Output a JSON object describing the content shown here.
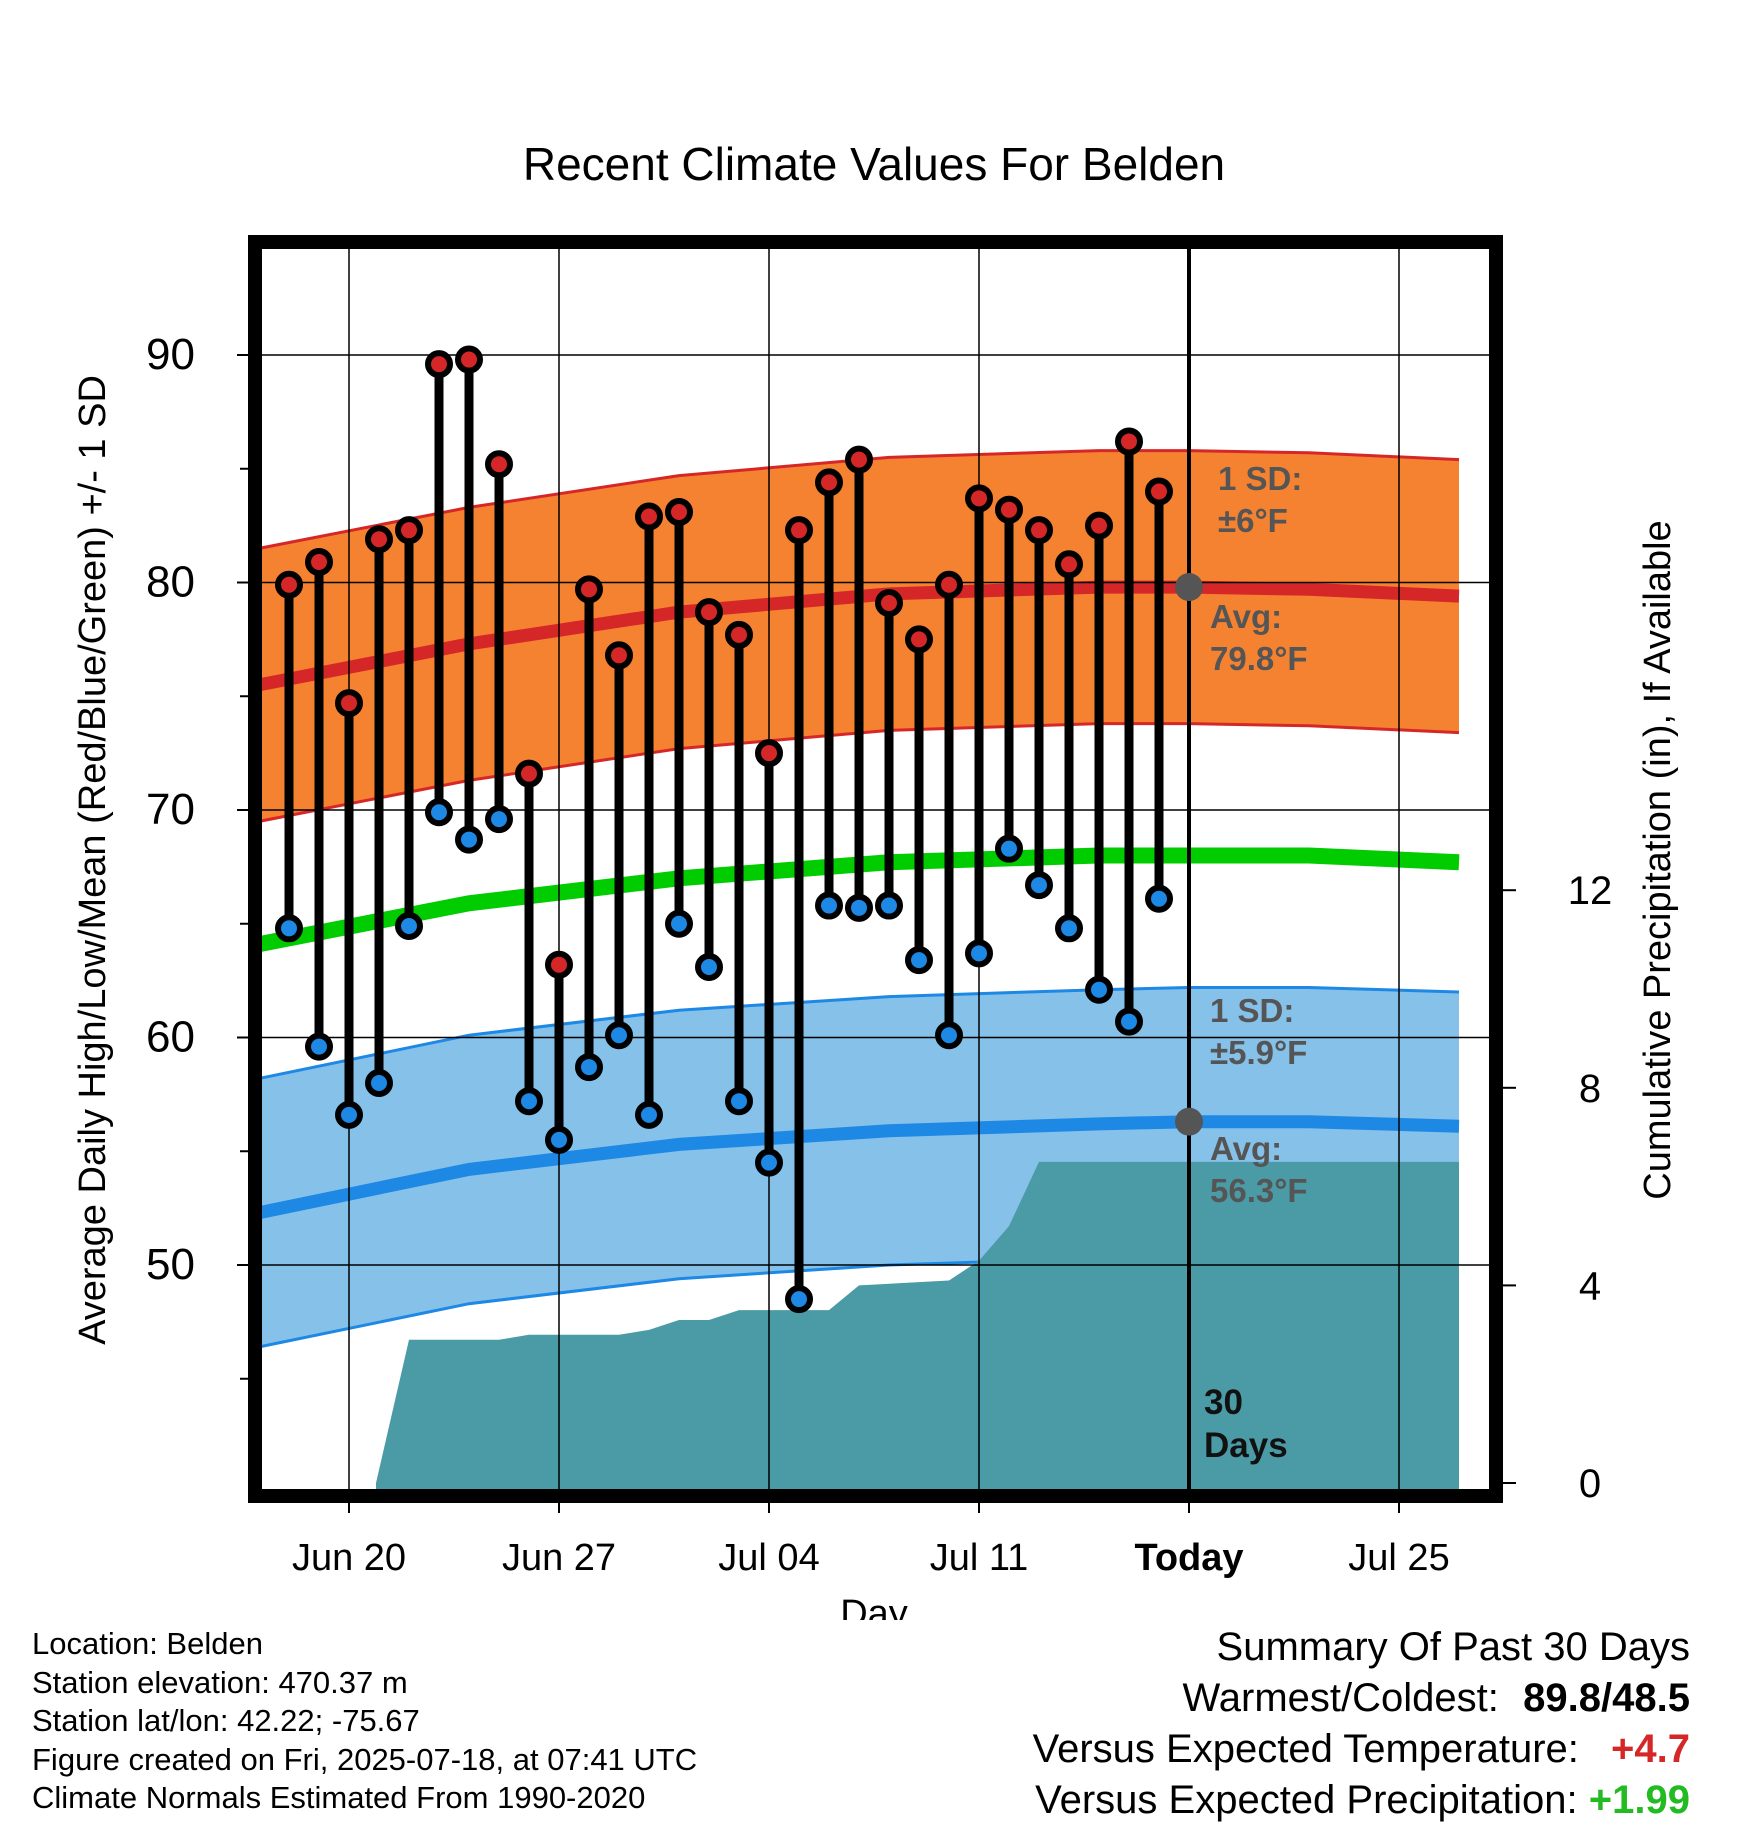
{
  "title": "Recent Climate Values For Belden",
  "chart_data": {
    "type": "line",
    "title": "Recent Climate Values For Belden",
    "xlabel": "Day",
    "ylabel": "Average Daily High/Low/Mean (Red/Blue/Green) +/- 1 SD",
    "y2label": "Cumulative Precipitation (in), If Available",
    "x_ticks": [
      "Jun 20",
      "Jun 27",
      "Jul 04",
      "Jul 11",
      "Today",
      "Jul 25"
    ],
    "y_ticks": [
      50,
      60,
      70,
      80,
      90
    ],
    "y2_ticks": [
      0,
      4,
      8,
      12
    ],
    "today_marker": "30 Days",
    "days": [
      "Jun 18",
      "Jun 19",
      "Jun 20",
      "Jun 21",
      "Jun 22",
      "Jun 23",
      "Jun 24",
      "Jun 25",
      "Jun 26",
      "Jun 27",
      "Jun 28",
      "Jun 29",
      "Jun 30",
      "Jul 01",
      "Jul 02",
      "Jul 03",
      "Jul 04",
      "Jul 05",
      "Jul 06",
      "Jul 07",
      "Jul 08",
      "Jul 09",
      "Jul 10",
      "Jul 11",
      "Jul 12",
      "Jul 13",
      "Jul 14",
      "Jul 15",
      "Jul 16",
      "Jul 17"
    ],
    "series": [
      {
        "name": "High",
        "color": "#d62728",
        "values": [
          79.9,
          80.9,
          74.7,
          81.9,
          82.3,
          89.6,
          89.8,
          85.2,
          71.6,
          63.2,
          79.7,
          76.8,
          82.9,
          83.1,
          78.7,
          77.7,
          72.5,
          82.3,
          84.4,
          85.4,
          79.1,
          77.5,
          79.9,
          83.7,
          83.2,
          82.3,
          80.8,
          82.5,
          86.2,
          84.0
        ]
      },
      {
        "name": "Low",
        "color": "#1e88e5",
        "values": [
          64.8,
          59.6,
          56.6,
          58.0,
          64.9,
          69.9,
          68.7,
          69.6,
          57.2,
          55.5,
          58.7,
          60.1,
          56.6,
          65.0,
          63.1,
          57.2,
          54.5,
          48.5,
          65.8,
          65.7,
          65.8,
          63.4,
          60.1,
          63.7,
          68.3,
          66.7,
          64.8,
          62.1,
          60.7,
          66.1
        ]
      }
    ],
    "normals": {
      "high_avg": "79.8",
      "high_sd": "6",
      "low_avg": "56.3",
      "low_sd": "5.9",
      "high_label_sd": "1 SD:",
      "high_label_avg": "Avg:",
      "low_label_sd": "1 SD:",
      "low_label_avg": "Avg:",
      "unit": "°F",
      "x": [
        "Jun 17",
        "Jun 24",
        "Jul 01",
        "Jul 08",
        "Jul 15",
        "Jul 18",
        "Jul 22",
        "Jul 27"
      ],
      "high_mean": [
        75.5,
        77.3,
        78.7,
        79.5,
        79.8,
        79.8,
        79.7,
        79.4
      ],
      "low_mean": [
        52.3,
        54.2,
        55.3,
        55.9,
        56.2,
        56.3,
        56.3,
        56.1
      ],
      "mean_mean": [
        64.1,
        65.9,
        67.0,
        67.7,
        68.0,
        68.0,
        68.0,
        67.7
      ]
    },
    "precip_cumulative": {
      "x": [
        "Jun 20.9",
        "Jun 22",
        "Jun 25",
        "Jun 26",
        "Jun 29",
        "Jun 30",
        "Jul 01",
        "Jul 02",
        "Jul 03",
        "Jul 06",
        "Jul 07",
        "Jul 10",
        "Jul 11",
        "Jul 12",
        "Jul 13",
        "Jul 18",
        "Jul 27"
      ],
      "values": [
        0,
        2.9,
        2.9,
        3.0,
        3.0,
        3.1,
        3.3,
        3.3,
        3.5,
        3.5,
        4.0,
        4.1,
        4.5,
        5.2,
        6.5,
        6.5,
        6.5
      ],
      "color": "#4a9ba6"
    },
    "legend": "none",
    "grid": true
  },
  "footer_left": {
    "location": "Location: Belden",
    "elevation": "Station elevation: 470.37 m",
    "latlon": "Station lat/lon: 42.22; -75.67",
    "created": "Figure created on Fri, 2025-07-18, at 07:41 UTC",
    "normals": "Climate Normals Estimated From 1990-2020"
  },
  "summary": {
    "heading": "Summary Of Past 30 Days",
    "warm_label": "Warmest/Coldest:",
    "warm_value": "89.8/48.5",
    "temp_label": "Versus Expected Temperature:",
    "temp_value": "+4.7",
    "precip_label": "Versus Expected Precipitation:",
    "precip_value": "+1.99"
  }
}
